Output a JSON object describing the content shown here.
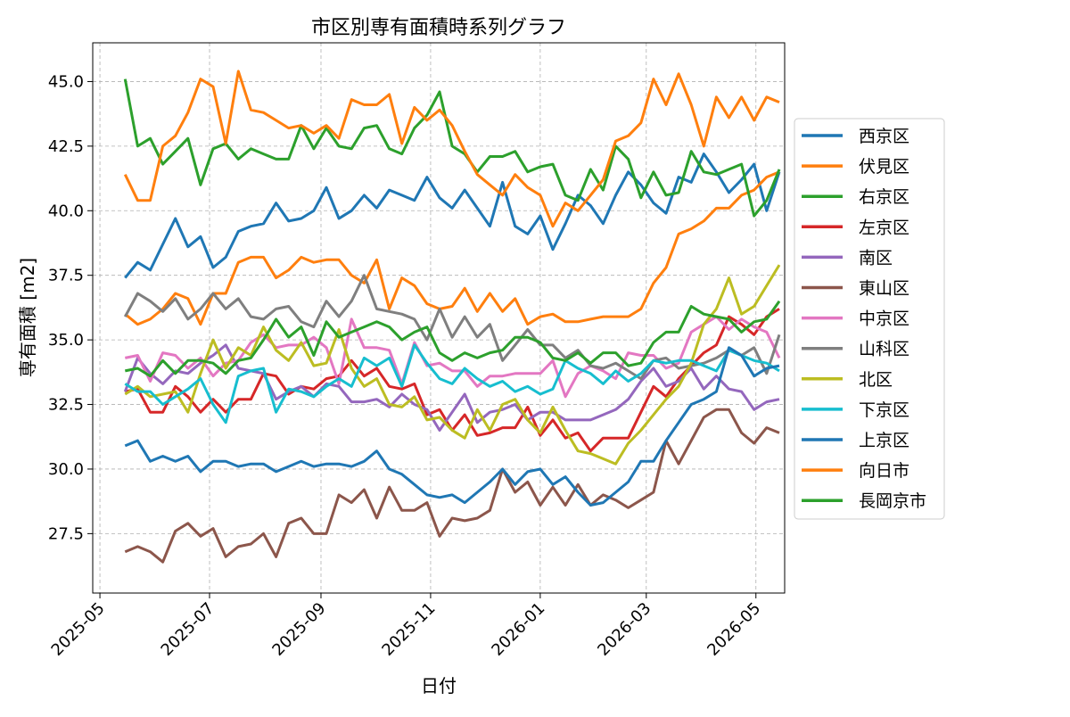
{
  "chart_data": {
    "type": "line",
    "title": "市区別専有面積時系列グラフ",
    "xlabel": "日付",
    "ylabel": "専有面積 [m2]",
    "xlim": [
      "2025-04-27",
      "2026-05-17"
    ],
    "ylim": [
      25.2,
      46.5
    ],
    "grid": true,
    "legend_position": "right",
    "x_ticks": [
      "2025-05-01",
      "2025-07-01",
      "2025-09-01",
      "2025-11-01",
      "2026-01-01",
      "2026-03-01",
      "2026-05-01"
    ],
    "x_tick_labels": [
      "2025-05",
      "2025-07",
      "2025-09",
      "2025-11",
      "2026-01",
      "2026-03",
      "2026-05"
    ],
    "y_ticks": [
      27.5,
      30.0,
      32.5,
      35.0,
      37.5,
      40.0,
      42.5,
      45.0
    ],
    "y_tick_labels": [
      "27.5",
      "30.0",
      "32.5",
      "35.0",
      "37.5",
      "40.0",
      "42.5",
      "45.0"
    ],
    "x": [
      "2025-05-15",
      "2025-05-22",
      "2025-05-29",
      "2025-06-05",
      "2025-06-12",
      "2025-06-19",
      "2025-06-26",
      "2025-07-03",
      "2025-07-10",
      "2025-07-17",
      "2025-07-24",
      "2025-07-31",
      "2025-08-07",
      "2025-08-14",
      "2025-08-21",
      "2025-08-28",
      "2025-09-04",
      "2025-09-11",
      "2025-09-18",
      "2025-09-25",
      "2025-10-02",
      "2025-10-09",
      "2025-10-16",
      "2025-10-23",
      "2025-10-30",
      "2025-11-06",
      "2025-11-13",
      "2025-11-20",
      "2025-11-27",
      "2025-12-04",
      "2025-12-11",
      "2025-12-18",
      "2025-12-25",
      "2026-01-01",
      "2026-01-08",
      "2026-01-15",
      "2026-01-22",
      "2026-01-29",
      "2026-02-05",
      "2026-02-12",
      "2026-02-19",
      "2026-02-26",
      "2026-03-05",
      "2026-03-12",
      "2026-03-19",
      "2026-03-26",
      "2026-04-02",
      "2026-04-09",
      "2026-04-16",
      "2026-04-23",
      "2026-04-30",
      "2026-05-07",
      "2026-05-14"
    ],
    "series": [
      {
        "name": "西京区",
        "color": "#1f77b4",
        "values": [
          37.4,
          38.0,
          37.7,
          38.7,
          39.7,
          38.6,
          39.0,
          37.8,
          38.2,
          39.2,
          39.4,
          39.5,
          40.3,
          39.6,
          39.7,
          40.0,
          40.9,
          39.7,
          40.0,
          40.6,
          40.1,
          40.8,
          40.6,
          40.4,
          41.3,
          40.5,
          40.1,
          40.8,
          40.1,
          39.4,
          41.1,
          39.4,
          39.1,
          39.8,
          38.5,
          39.5,
          40.6,
          40.2,
          39.5,
          40.6,
          41.5,
          41.0,
          40.3,
          39.9,
          41.3,
          41.1,
          42.2,
          41.5,
          40.7,
          41.2,
          41.8,
          40.0,
          41.5
        ]
      },
      {
        "name": "伏見区",
        "color": "#ff7f0e",
        "values": [
          36.0,
          35.6,
          35.8,
          36.2,
          36.8,
          36.6,
          35.6,
          36.8,
          36.8,
          38.0,
          38.2,
          38.2,
          37.4,
          37.7,
          38.2,
          38.0,
          38.1,
          38.1,
          37.5,
          37.2,
          38.1,
          36.2,
          37.4,
          37.1,
          36.4,
          36.2,
          36.3,
          37.0,
          36.1,
          36.8,
          36.1,
          36.6,
          35.6,
          35.9,
          36.0,
          35.7,
          35.7,
          35.8,
          35.9,
          35.9,
          35.9,
          36.2,
          37.2,
          37.8,
          39.1,
          39.3,
          39.6,
          40.1,
          40.1,
          40.6,
          40.8,
          41.3,
          41.5
        ]
      },
      {
        "name": "右京区",
        "color": "#2ca02c",
        "values": [
          45.1,
          42.5,
          42.8,
          41.8,
          42.3,
          42.8,
          41.0,
          42.4,
          42.6,
          42.0,
          42.4,
          42.2,
          42.0,
          42.0,
          43.3,
          42.4,
          43.2,
          42.5,
          42.4,
          43.2,
          43.3,
          42.4,
          42.2,
          43.2,
          43.7,
          44.6,
          42.5,
          42.2,
          41.5,
          42.1,
          42.1,
          42.3,
          41.5,
          41.7,
          41.8,
          40.6,
          40.4,
          41.6,
          40.8,
          42.5,
          42.0,
          40.5,
          41.5,
          40.6,
          40.7,
          42.3,
          41.5,
          41.4,
          41.6,
          41.8,
          39.8,
          40.4,
          41.6
        ]
      },
      {
        "name": "左京区",
        "color": "#d62728",
        "values": [
          33.0,
          33.1,
          32.2,
          32.2,
          33.2,
          32.8,
          32.2,
          32.7,
          32.2,
          32.7,
          32.7,
          33.7,
          33.6,
          32.9,
          33.2,
          33.1,
          33.5,
          33.6,
          34.2,
          33.6,
          33.9,
          33.2,
          33.1,
          33.3,
          32.1,
          32.3,
          31.5,
          32.1,
          31.3,
          31.4,
          31.6,
          31.6,
          32.4,
          31.3,
          31.9,
          31.2,
          31.4,
          30.7,
          31.2,
          31.2,
          31.2,
          32.2,
          33.2,
          32.8,
          33.5,
          34.0,
          34.5,
          34.8,
          35.9,
          35.6,
          35.2,
          35.9,
          36.2
        ]
      },
      {
        "name": "南区",
        "color": "#9467bd",
        "values": [
          33.0,
          34.3,
          33.7,
          33.3,
          33.8,
          33.7,
          34.1,
          34.4,
          34.8,
          33.9,
          33.8,
          33.7,
          32.7,
          33.0,
          33.2,
          32.8,
          33.3,
          33.2,
          32.6,
          32.6,
          32.7,
          32.4,
          32.9,
          32.5,
          32.3,
          31.5,
          32.2,
          32.9,
          31.8,
          32.2,
          32.3,
          32.5,
          31.9,
          32.2,
          32.2,
          31.9,
          31.9,
          31.9,
          32.1,
          32.3,
          32.7,
          33.4,
          33.9,
          33.2,
          33.4,
          33.9,
          33.1,
          33.6,
          33.1,
          33.0,
          32.3,
          32.6,
          32.7
        ]
      },
      {
        "name": "東山区",
        "color": "#8c564b",
        "values": [
          26.8,
          27.0,
          26.8,
          26.4,
          27.6,
          27.9,
          27.4,
          27.7,
          26.6,
          27.0,
          27.1,
          27.5,
          26.6,
          27.9,
          28.1,
          27.5,
          27.5,
          29.0,
          28.7,
          29.2,
          28.1,
          29.3,
          28.4,
          28.4,
          28.7,
          27.4,
          28.1,
          28.0,
          28.1,
          28.4,
          30.0,
          29.1,
          29.5,
          28.6,
          29.3,
          28.6,
          29.4,
          28.6,
          29.0,
          28.8,
          28.5,
          28.8,
          29.1,
          31.1,
          30.2,
          31.1,
          32.0,
          32.3,
          32.3,
          31.4,
          31.0,
          31.6,
          31.4
        ]
      },
      {
        "name": "中京区",
        "color": "#e377c2",
        "values": [
          34.3,
          34.4,
          33.4,
          34.5,
          34.4,
          33.9,
          34.3,
          33.6,
          34.1,
          34.2,
          34.9,
          35.2,
          34.7,
          34.8,
          34.8,
          35.1,
          34.7,
          33.3,
          35.8,
          34.7,
          34.7,
          34.6,
          33.3,
          34.9,
          34.0,
          34.1,
          33.8,
          33.8,
          33.2,
          33.6,
          33.6,
          33.7,
          33.7,
          33.7,
          34.2,
          32.8,
          33.7,
          34.0,
          33.8,
          33.5,
          34.5,
          34.4,
          34.4,
          33.9,
          34.1,
          35.3,
          35.6,
          35.9,
          35.4,
          35.8,
          35.5,
          35.3,
          34.3
        ]
      },
      {
        "name": "山科区",
        "color": "#7f7f7f",
        "values": [
          35.9,
          36.8,
          36.5,
          36.1,
          36.6,
          35.8,
          36.2,
          36.8,
          36.2,
          36.6,
          35.9,
          35.8,
          36.2,
          36.3,
          35.7,
          35.5,
          36.5,
          35.9,
          36.5,
          37.5,
          36.2,
          36.1,
          36.0,
          35.8,
          35.0,
          36.2,
          35.1,
          35.9,
          35.1,
          35.6,
          34.2,
          34.8,
          35.4,
          34.8,
          34.8,
          34.3,
          34.6,
          34.0,
          33.9,
          34.1,
          33.8,
          33.5,
          34.2,
          34.3,
          33.9,
          34.0,
          34.1,
          34.3,
          34.6,
          34.4,
          34.7,
          33.7,
          35.2
        ]
      },
      {
        "name": "北区",
        "color": "#bcbd22",
        "values": [
          32.9,
          33.2,
          32.8,
          32.9,
          33.0,
          32.2,
          33.7,
          35.0,
          33.9,
          34.7,
          34.4,
          35.5,
          34.6,
          34.2,
          34.9,
          34.0,
          34.1,
          35.4,
          33.9,
          33.2,
          33.5,
          32.5,
          32.4,
          32.8,
          31.9,
          32.0,
          31.5,
          31.2,
          32.3,
          31.5,
          32.5,
          32.7,
          31.9,
          31.4,
          32.4,
          31.5,
          30.7,
          30.6,
          30.4,
          30.2,
          31.0,
          31.5,
          32.1,
          32.7,
          33.2,
          34.1,
          35.6,
          36.2,
          37.4,
          36.0,
          36.3,
          37.1,
          37.9
        ]
      },
      {
        "name": "下京区",
        "color": "#17becf",
        "values": [
          33.3,
          33.0,
          33.0,
          32.5,
          32.8,
          33.1,
          33.5,
          32.5,
          31.8,
          33.6,
          33.8,
          33.9,
          32.2,
          33.1,
          33.0,
          32.8,
          33.2,
          33.5,
          33.2,
          34.3,
          34.0,
          34.3,
          33.2,
          34.8,
          34.1,
          33.5,
          33.3,
          33.9,
          33.5,
          33.2,
          33.4,
          33.0,
          33.2,
          32.9,
          33.1,
          34.2,
          33.9,
          33.7,
          33.3,
          33.8,
          33.4,
          33.7,
          34.2,
          34.1,
          34.2,
          34.2,
          34.0,
          33.8,
          34.6,
          34.4,
          34.2,
          34.1,
          33.8
        ]
      },
      {
        "name": "上京区",
        "color": "#1f77b4",
        "values": [
          30.9,
          31.1,
          30.3,
          30.5,
          30.3,
          30.5,
          29.9,
          30.3,
          30.3,
          30.1,
          30.2,
          30.2,
          29.9,
          30.1,
          30.3,
          30.1,
          30.2,
          30.2,
          30.1,
          30.3,
          30.7,
          30.0,
          29.8,
          29.4,
          29.0,
          28.9,
          29.0,
          28.7,
          29.1,
          29.5,
          30.0,
          29.4,
          29.9,
          30.0,
          29.4,
          29.7,
          29.1,
          28.6,
          28.7,
          29.1,
          29.5,
          30.3,
          30.3,
          31.1,
          31.8,
          32.5,
          32.7,
          33.0,
          34.7,
          34.4,
          33.6,
          33.9,
          34.0
        ]
      },
      {
        "name": "向日市",
        "color": "#ff7f0e",
        "values": [
          41.4,
          40.4,
          40.4,
          42.5,
          42.9,
          43.8,
          45.1,
          44.8,
          42.6,
          45.4,
          43.9,
          43.8,
          43.5,
          43.2,
          43.3,
          43.0,
          43.3,
          42.8,
          44.3,
          44.1,
          44.1,
          44.5,
          42.6,
          44.0,
          43.5,
          43.9,
          43.3,
          42.3,
          41.4,
          41.0,
          40.6,
          41.4,
          40.9,
          40.6,
          39.4,
          40.3,
          40.0,
          40.6,
          41.2,
          42.7,
          42.9,
          43.4,
          45.1,
          44.1,
          45.3,
          44.1,
          42.5,
          44.4,
          43.6,
          44.4,
          43.5,
          44.4,
          44.2
        ]
      },
      {
        "name": "長岡京市",
        "color": "#2ca02c",
        "values": [
          33.8,
          33.9,
          33.6,
          34.2,
          33.7,
          34.2,
          34.2,
          34.1,
          33.7,
          34.2,
          34.3,
          35.0,
          35.8,
          35.1,
          35.5,
          34.4,
          35.7,
          35.1,
          35.3,
          35.5,
          35.7,
          35.5,
          35.0,
          35.3,
          35.5,
          34.5,
          34.2,
          34.5,
          34.3,
          34.5,
          34.6,
          35.1,
          35.1,
          34.9,
          34.3,
          34.2,
          34.5,
          34.1,
          34.5,
          34.5,
          34.0,
          34.1,
          34.9,
          35.3,
          35.3,
          36.3,
          36.0,
          35.9,
          35.8,
          35.3,
          35.7,
          35.8,
          36.5
        ]
      }
    ]
  }
}
